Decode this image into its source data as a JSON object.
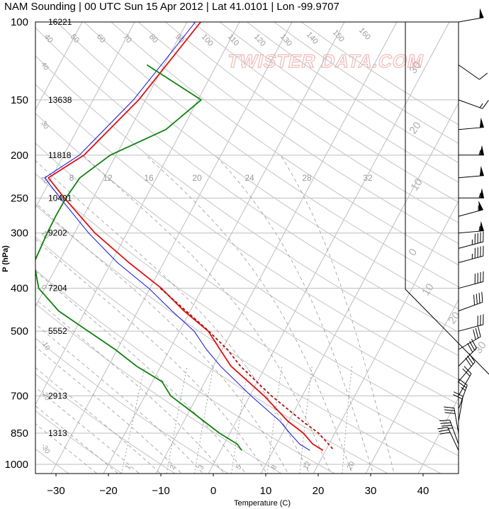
{
  "chart_data": {
    "type": "line",
    "title": "NAM Sounding | 00 UTC Sun 15 Apr 2012 | Lat 41.0101 | Lon -99.9707",
    "xlabel": "Temperature (C)",
    "ylabel": "P (hPa)",
    "watermark": "TWISTER DATA.COM",
    "xlim": [
      -34,
      51
    ],
    "ylim": [
      1070,
      100
    ],
    "log_y": true,
    "skew_c_per_decade": 45,
    "grid": true,
    "x_ticks": [
      -30,
      -20,
      -10,
      0,
      10,
      20,
      30,
      40
    ],
    "pressure_levels": [
      {
        "p": 100,
        "label": "100",
        "height": "16221"
      },
      {
        "p": 150,
        "label": "150",
        "height": "13638"
      },
      {
        "p": 200,
        "label": "200",
        "height": "11818"
      },
      {
        "p": 250,
        "label": "250",
        "height": "10401"
      },
      {
        "p": 300,
        "label": "300",
        "height": "9202"
      },
      {
        "p": 400,
        "label": "400",
        "height": "7204"
      },
      {
        "p": 500,
        "label": "500",
        "height": "5552"
      },
      {
        "p": 700,
        "label": "700",
        "height": "2913"
      },
      {
        "p": 850,
        "label": "850",
        "height": "1313"
      },
      {
        "p": 1000,
        "label": "1000",
        "height": ""
      }
    ],
    "dry_adiabat_labels": [
      "40",
      "50",
      "60",
      "70",
      "80",
      "90",
      "100",
      "110",
      "120",
      "130",
      "140",
      "150",
      "160"
    ],
    "mixing_ratio_labels": [
      "1",
      "2",
      "3",
      "5",
      "8",
      "12",
      "20"
    ],
    "theta_e_labels": [
      "8",
      "12",
      "16",
      "20",
      "24",
      "28",
      "32"
    ],
    "hodograph_ring_labels": [
      "30",
      "20",
      "10",
      "0",
      "10",
      "20",
      "30"
    ],
    "isotherm_side_labels": [
      "40",
      "30",
      "20",
      "10",
      "0",
      "-10",
      "-20",
      "-30"
    ],
    "series": [
      {
        "name": "temperature",
        "color": "#e01010",
        "points": [
          [
            100,
            -47.4
          ],
          [
            150,
            -51.3
          ],
          [
            200,
            -56.1
          ],
          [
            225,
            -60.6
          ],
          [
            250,
            -55.5
          ],
          [
            300,
            -46.1
          ],
          [
            350,
            -36.6
          ],
          [
            400,
            -27.8
          ],
          [
            450,
            -21.2
          ],
          [
            500,
            -14.5
          ],
          [
            550,
            -10.4
          ],
          [
            600,
            -6.6
          ],
          [
            700,
            2.7
          ],
          [
            800,
            9.9
          ],
          [
            850,
            14.0
          ],
          [
            900,
            16.9
          ],
          [
            930,
            19.5
          ]
        ]
      },
      {
        "name": "virtual-temperature",
        "color": "#1010e0",
        "points": [
          [
            100,
            -48.4
          ],
          [
            150,
            -52.3
          ],
          [
            200,
            -57.0
          ],
          [
            225,
            -61.3
          ],
          [
            250,
            -56.3
          ],
          [
            300,
            -47.3
          ],
          [
            350,
            -38.8
          ],
          [
            400,
            -30.2
          ],
          [
            450,
            -23.5
          ],
          [
            500,
            -17.2
          ],
          [
            550,
            -13.0
          ],
          [
            600,
            -8.6
          ],
          [
            700,
            0.2
          ],
          [
            800,
            8.4
          ],
          [
            850,
            11.4
          ],
          [
            900,
            14.4
          ],
          [
            930,
            17.0
          ]
        ]
      },
      {
        "name": "parcel",
        "color": "#b01010",
        "dashed": true,
        "points": [
          [
            400,
            -28.0
          ],
          [
            450,
            -20.8
          ],
          [
            500,
            -14.4
          ],
          [
            550,
            -9.0
          ],
          [
            600,
            -4.8
          ],
          [
            700,
            4.1
          ],
          [
            800,
            12.7
          ],
          [
            850,
            16.9
          ],
          [
            900,
            19.9
          ],
          [
            930,
            21.6
          ]
        ]
      },
      {
        "name": "dewpoint",
        "color": "#108010",
        "points": [
          [
            125,
            -53.3
          ],
          [
            150,
            -39.4
          ],
          [
            175,
            -43.1
          ],
          [
            200,
            -51.1
          ],
          [
            225,
            -54.6
          ],
          [
            250,
            -55.2
          ],
          [
            275,
            -55.3
          ],
          [
            300,
            -55.2
          ],
          [
            350,
            -54.7
          ],
          [
            400,
            -51.2
          ],
          [
            450,
            -45.1
          ],
          [
            500,
            -37.4
          ],
          [
            550,
            -30.4
          ],
          [
            600,
            -24.6
          ],
          [
            650,
            -18.2
          ],
          [
            700,
            -15.1
          ],
          [
            750,
            -10.4
          ],
          [
            800,
            -6.1
          ],
          [
            850,
            -2.0
          ],
          [
            900,
            2.5
          ],
          [
            930,
            4.0
          ]
        ]
      }
    ],
    "wind_barbs": [
      {
        "p": 100,
        "dir": 260,
        "kt": 50
      },
      {
        "p": 125,
        "dir": 305,
        "kt": 10
      },
      {
        "p": 150,
        "dir": 290,
        "kt": 15
      },
      {
        "p": 175,
        "dir": 265,
        "kt": 50
      },
      {
        "p": 200,
        "dir": 270,
        "kt": 55
      },
      {
        "p": 225,
        "dir": 265,
        "kt": 50
      },
      {
        "p": 250,
        "dir": 270,
        "kt": 55
      },
      {
        "p": 275,
        "dir": 255,
        "kt": 55
      },
      {
        "p": 300,
        "dir": 265,
        "kt": 55
      },
      {
        "p": 325,
        "dir": 255,
        "kt": 45
      },
      {
        "p": 350,
        "dir": 255,
        "kt": 45
      },
      {
        "p": 400,
        "dir": 255,
        "kt": 40
      },
      {
        "p": 450,
        "dir": 250,
        "kt": 40
      },
      {
        "p": 500,
        "dir": 255,
        "kt": 30
      },
      {
        "p": 550,
        "dir": 240,
        "kt": 30
      },
      {
        "p": 600,
        "dir": 225,
        "kt": 30
      },
      {
        "p": 650,
        "dir": 220,
        "kt": 30
      },
      {
        "p": 700,
        "dir": 210,
        "kt": 20
      },
      {
        "p": 750,
        "dir": 200,
        "kt": 25
      },
      {
        "p": 800,
        "dir": 190,
        "kt": 20
      },
      {
        "p": 850,
        "dir": 170,
        "kt": 30
      },
      {
        "p": 900,
        "dir": 160,
        "kt": 35
      },
      {
        "p": 930,
        "dir": 155,
        "kt": 30
      }
    ]
  }
}
